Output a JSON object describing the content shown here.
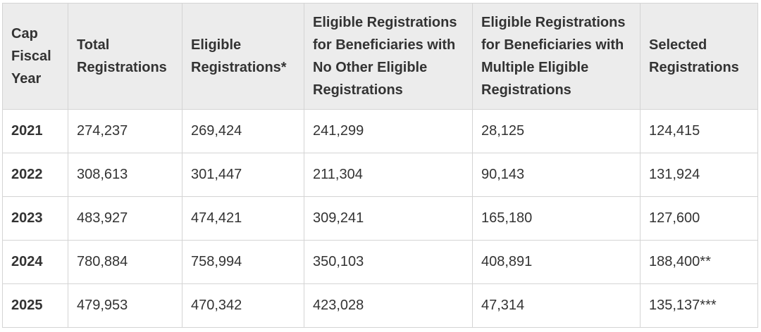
{
  "table": {
    "headers": [
      "Cap Fiscal Year",
      "Total Registrations",
      "Eligible Registrations*",
      "Eligible Registrations for Beneficiaries with No Other Eligible Registrations",
      "Eligible Registrations for Beneficiaries with Multiple Eligible Registrations",
      "Selected Registrations"
    ],
    "rows": [
      [
        "2021",
        "274,237",
        "269,424",
        "241,299",
        "28,125",
        "124,415"
      ],
      [
        "2022",
        "308,613",
        "301,447",
        "211,304",
        "90,143",
        "131,924"
      ],
      [
        "2023",
        "483,927",
        "474,421",
        "309,241",
        "165,180",
        "127,600"
      ],
      [
        "2024",
        "780,884",
        "758,994",
        "350,103",
        "408,891",
        "188,400**"
      ],
      [
        "2025",
        "479,953",
        "470,342",
        "423,028",
        "47,314",
        "135,137***"
      ]
    ]
  }
}
